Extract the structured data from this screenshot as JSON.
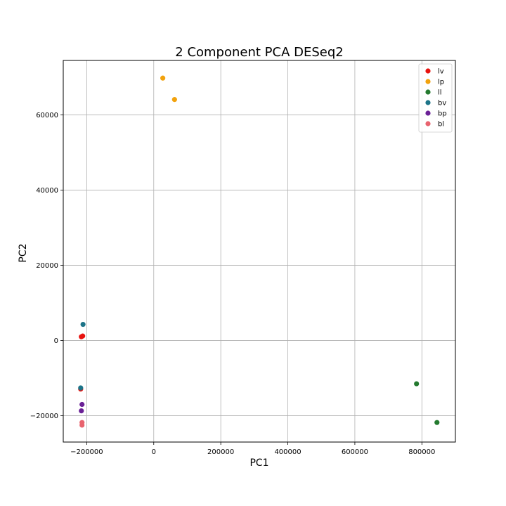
{
  "chart_data": {
    "type": "scatter",
    "title": "2 Component PCA DESeq2",
    "xlabel": "PC1",
    "ylabel": "PC2",
    "xlim": [
      -270000,
      900000
    ],
    "ylim": [
      -27000,
      74500
    ],
    "xticks": [
      -200000,
      0,
      200000,
      400000,
      600000,
      800000
    ],
    "yticks": [
      -20000,
      0,
      20000,
      40000,
      60000
    ],
    "grid": true,
    "legend_position": "top-right",
    "series": [
      {
        "name": "lv",
        "color": "#e8120e",
        "points": [
          [
            -212000,
            1200
          ],
          [
            -216000,
            1000
          ],
          [
            -218000,
            -12900
          ]
        ]
      },
      {
        "name": "lp",
        "color": "#f2a20d",
        "points": [
          [
            27000,
            69800
          ],
          [
            62000,
            64100
          ]
        ]
      },
      {
        "name": "ll",
        "color": "#247a2f",
        "points": [
          [
            784000,
            -11500
          ],
          [
            845000,
            -21800
          ]
        ]
      },
      {
        "name": "bv",
        "color": "#1d7488",
        "points": [
          [
            -211000,
            4300
          ],
          [
            -218000,
            -12600
          ]
        ]
      },
      {
        "name": "bp",
        "color": "#6a2096",
        "points": [
          [
            -214000,
            -17000
          ],
          [
            -216000,
            -18700
          ]
        ]
      },
      {
        "name": "bl",
        "color": "#e8636e",
        "points": [
          [
            -214000,
            -21800
          ],
          [
            -214000,
            -22500
          ]
        ]
      }
    ]
  }
}
